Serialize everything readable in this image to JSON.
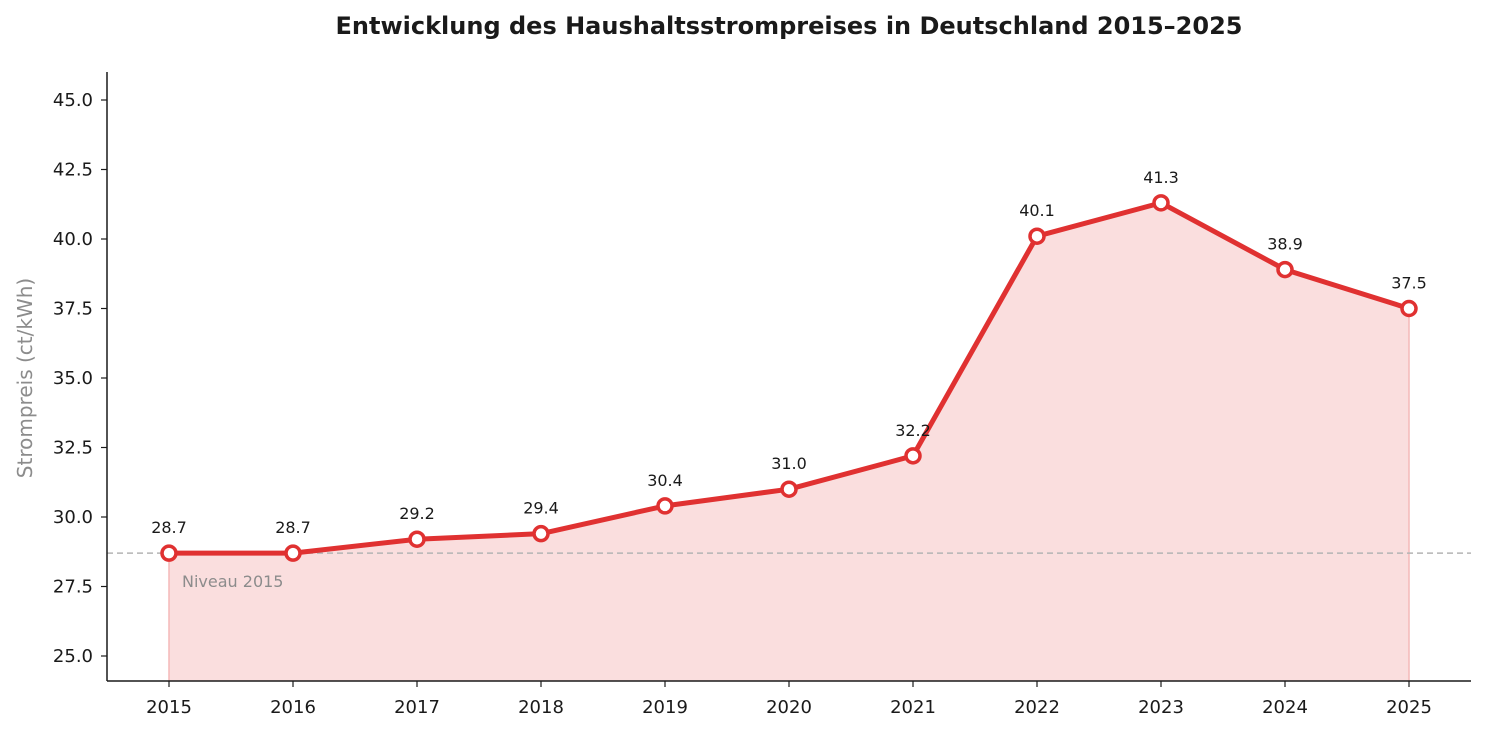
{
  "chart_data": {
    "type": "line",
    "title": "Entwicklung des Haushaltsstrompreises in Deutschland 2015–2025",
    "xlabel": "",
    "ylabel": "Strompreis (ct/kWh)",
    "x": [
      "2015",
      "2016",
      "2017",
      "2018",
      "2019",
      "2020",
      "2021",
      "2022",
      "2023",
      "2024",
      "2025"
    ],
    "series": [
      {
        "values": [
          28.7,
          28.7,
          29.2,
          29.4,
          30.4,
          31.0,
          32.2,
          40.1,
          41.3,
          38.9,
          37.5
        ],
        "data_labels": [
          "28.7",
          "28.7",
          "29.2",
          "29.4",
          "30.4",
          "31.0",
          "32.2",
          "40.1",
          "41.3",
          "38.9",
          "37.5"
        ],
        "color": "#e03131",
        "fill_color": "#fadede"
      }
    ],
    "ylim": [
      24.1,
      46.1
    ],
    "yticks": [
      25.0,
      27.5,
      30.0,
      32.5,
      35.0,
      37.5,
      40.0,
      42.5,
      45.0
    ],
    "ytick_labels": [
      "25.0",
      "27.5",
      "30.0",
      "32.5",
      "35.0",
      "37.5",
      "40.0",
      "42.5",
      "45.0"
    ],
    "reference_line": {
      "value": 28.7,
      "label": "Niveau 2015",
      "color": "#b4b4b4",
      "style": "dashed"
    },
    "grid": false
  }
}
